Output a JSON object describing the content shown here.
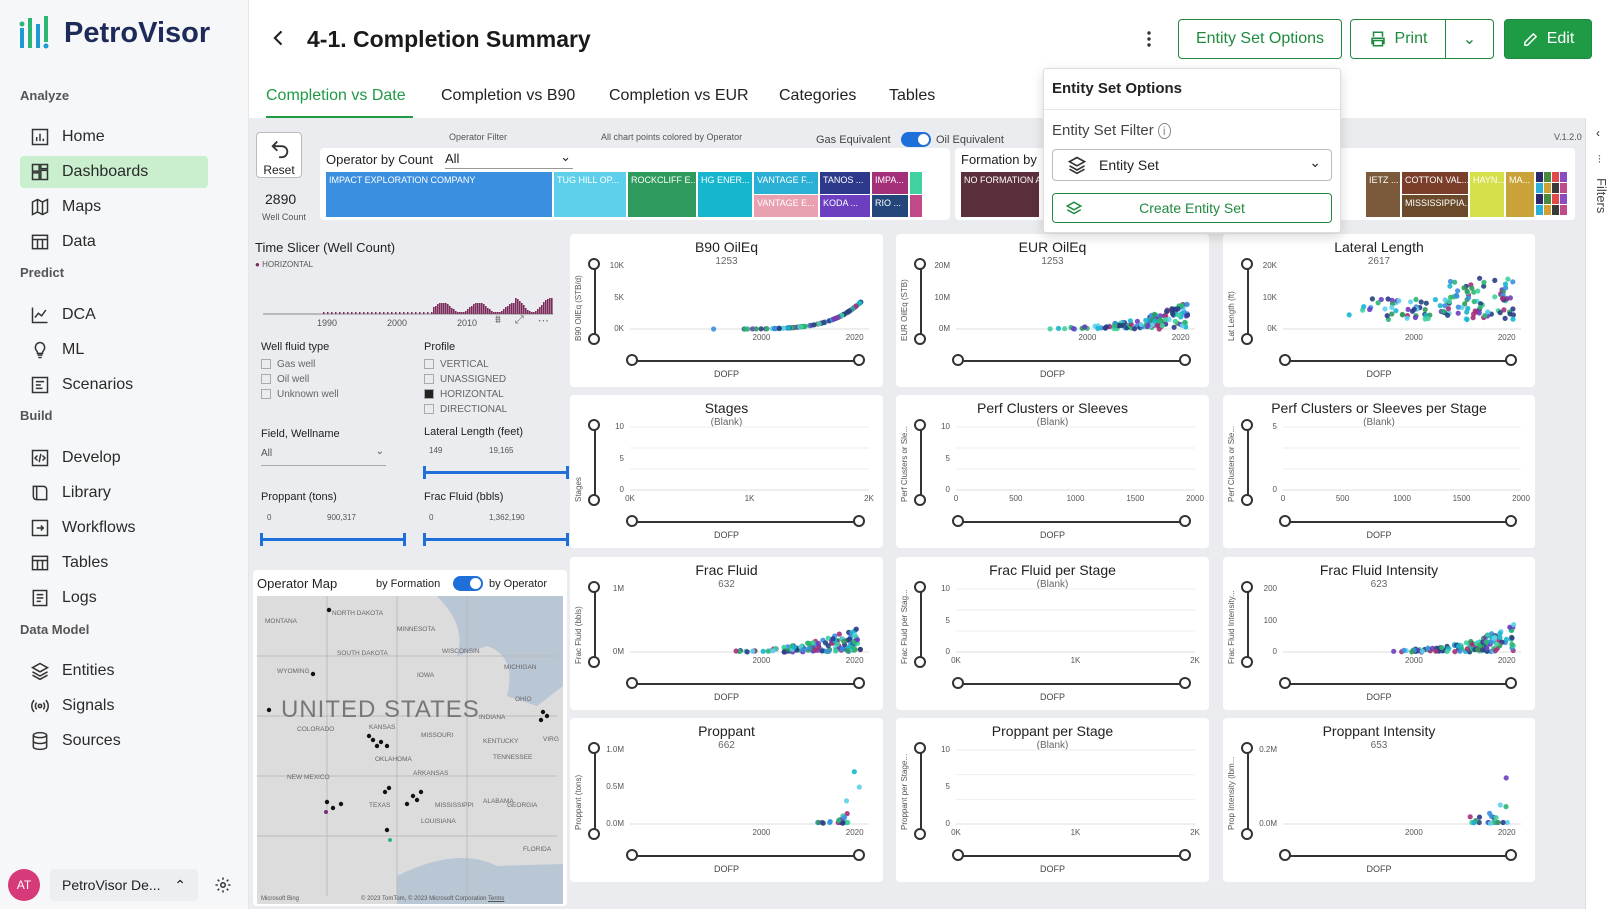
{
  "app": {
    "name": "PetroVisor"
  },
  "sidebar": {
    "sections": [
      {
        "label": "Analyze",
        "items": [
          {
            "label": "Home",
            "icon": "bar-chart-icon"
          },
          {
            "label": "Dashboards",
            "icon": "dashboard-icon",
            "active": true
          },
          {
            "label": "Maps",
            "icon": "map-icon"
          },
          {
            "label": "Data",
            "icon": "table-icon"
          }
        ]
      },
      {
        "label": "Predict",
        "items": [
          {
            "label": "DCA",
            "icon": "line-chart-icon"
          },
          {
            "label": "ML",
            "icon": "lightbulb-icon"
          },
          {
            "label": "Scenarios",
            "icon": "scenarios-icon"
          }
        ]
      },
      {
        "label": "Build",
        "items": [
          {
            "label": "Develop",
            "icon": "code-icon"
          },
          {
            "label": "Library",
            "icon": "book-icon"
          },
          {
            "label": "Workflows",
            "icon": "workflow-icon"
          },
          {
            "label": "Tables",
            "icon": "table-icon"
          },
          {
            "label": "Logs",
            "icon": "log-icon"
          }
        ]
      },
      {
        "label": "Data Model",
        "items": [
          {
            "label": "Entities",
            "icon": "layers-icon"
          },
          {
            "label": "Signals",
            "icon": "signal-icon"
          },
          {
            "label": "Sources",
            "icon": "database-icon"
          }
        ]
      }
    ],
    "user": {
      "initials": "AT",
      "workspace": "PetroVisor De..."
    }
  },
  "header": {
    "title": "4-1. Completion Summary",
    "entity_set_options": "Entity Set Options",
    "print": "Print",
    "edit": "Edit"
  },
  "tabs": [
    "Completion vs Date",
    "Completion vs B90",
    "Completion vs EUR",
    "Categories",
    "Tables"
  ],
  "entity_panel": {
    "title": "Entity Set Options",
    "filter_label": "Entity Set Filter",
    "select_value": "Entity Set",
    "create": "Create Entity Set"
  },
  "report": {
    "reset": "Reset",
    "well_count": "2890",
    "well_count_label": "Well Count",
    "operator_filter": "Operator Filter",
    "colored_note": "All chart points colored by Operator",
    "gas_equiv": "Gas Equivalent",
    "oil_equiv": "Oil Equivalent",
    "version": "V.1.2.0",
    "operator_by_count": "Operator by Count",
    "operator_all": "All",
    "formation_by": "Formation by",
    "operators": [
      {
        "label": "IMPACT EXPLORATION COMPANY",
        "color": "#3a8fe0"
      },
      {
        "label": "TUG HILL OP...",
        "color": "#5fd0ec"
      },
      {
        "label": "ROCKCLIFF E...",
        "color": "#2e9a5c"
      },
      {
        "label": "HG ENER...",
        "color": "#16b6cf"
      },
      {
        "label": "VANTAGE F...",
        "color": "#2ab0d4"
      },
      {
        "label": "VANTAGE E...",
        "color": "#e9a0b0"
      },
      {
        "label": "TANOS ...",
        "color": "#2d3a8c"
      },
      {
        "label": "KODA ...",
        "color": "#6b3fc0"
      },
      {
        "label": "IMPA...",
        "color": "#a5307a"
      },
      {
        "label": "RIO ...",
        "color": "#25467a"
      }
    ],
    "formations": [
      {
        "label": "NO FORMATION AS",
        "color": "#5c2f3c"
      },
      {
        "label": "IETZ ...",
        "color": "#7a5a3a"
      },
      {
        "label": "COTTON VAL...",
        "color": "#7a3e2a"
      },
      {
        "label": "MISSISSIPPIA...",
        "color": "#6a4a2a"
      },
      {
        "label": "HAYN...",
        "color": "#d6e04a"
      },
      {
        "label": "MA...",
        "color": "#c9a23a"
      }
    ],
    "time_slicer": "Time Slicer (Well Count)",
    "horizontal": "HORIZONTAL",
    "years": [
      "1990",
      "2000",
      "2010"
    ],
    "well_fluid": {
      "title": "Well fluid type",
      "options": [
        "Gas well",
        "Oil well",
        "Unknown well"
      ]
    },
    "profile": {
      "title": "Profile",
      "options": [
        {
          "label": "VERTICAL",
          "checked": false
        },
        {
          "label": "UNASSIGNED",
          "checked": false
        },
        {
          "label": "HORIZONTAL",
          "checked": true
        },
        {
          "label": "DIRECTIONAL",
          "checked": false
        }
      ]
    },
    "field_wellname": "Field, Wellname",
    "field_all": "All",
    "lateral_length": {
      "title": "Lateral Length (feet)",
      "min": "149",
      "max": "19,165"
    },
    "proppant": {
      "title": "Proppant (tons)",
      "min": "0",
      "max": "900,317"
    },
    "frac_fluid": {
      "title": "Frac Fluid (bbls)",
      "min": "0",
      "max": "1,362,190"
    },
    "map": {
      "title": "Operator Map",
      "by_formation": "by Formation",
      "by_operator": "by Operator",
      "country": "UNITED STATES",
      "labels": [
        "MONTANA",
        "NORTH DAKOTA",
        "MINNESOTA",
        "SOUTH DAKOTA",
        "WISCONSIN",
        "MICHIGAN",
        "WYOMING",
        "IOWA",
        "OHIO",
        "INDIANA",
        "COLORADO",
        "KANSAS",
        "MISSOURI",
        "KENTUCKY",
        "VIRG",
        "NEW MEXICO",
        "OKLAHOMA",
        "TENNESSEE",
        "ARKANSAS",
        "TEXAS",
        "MISSISSIPPI",
        "ALABAMA",
        "GEORGIA",
        "LOUISIANA",
        "FLORIDA"
      ],
      "credit": "Microsoft Bing",
      "copyright": "© 2023 TomTom, © 2023 Microsoft Corporation",
      "terms": "Terms"
    }
  },
  "charts": [
    {
      "title": "B90 OilEq",
      "sub": "1253",
      "ylabel": "B90 OilEq (STB/d)",
      "xlabel": "DOFP",
      "yticks": [
        "10K",
        "5K",
        "0K"
      ],
      "xticks": [
        "2000",
        "2020"
      ],
      "mode": "scatter"
    },
    {
      "title": "EUR OilEq",
      "sub": "1253",
      "ylabel": "EUR OilEq (STB)",
      "xlabel": "DOFP",
      "yticks": [
        "20M",
        "10M",
        "0M"
      ],
      "xticks": [
        "2000",
        "2020"
      ],
      "mode": "scatter"
    },
    {
      "title": "Lateral Length",
      "sub": "2617",
      "ylabel": "Lat Length (ft)",
      "xlabel": "DOFP",
      "yticks": [
        "20K",
        "10K",
        "0K"
      ],
      "xticks": [
        "2000",
        "2020"
      ],
      "mode": "scatter-high"
    },
    {
      "title": "Stages",
      "sub": "(Blank)",
      "ylabel": "Stages",
      "xlabel": "DOFP",
      "yticks": [
        "10",
        "5",
        "0"
      ],
      "xticks": [
        "0K",
        "1K",
        "2K"
      ],
      "mode": "blank"
    },
    {
      "title": "Perf Clusters or Sleeves",
      "sub": "(Blank)",
      "ylabel": "Perf Clusters or Sle...",
      "xlabel": "DOFP",
      "yticks": [
        "10",
        "5",
        "0"
      ],
      "xticks": [
        "0",
        "500",
        "1000",
        "1500",
        "2000"
      ],
      "mode": "blank"
    },
    {
      "title": "Perf Clusters or Sleeves per Stage",
      "sub": "(Blank)",
      "ylabel": "Perf Clusters or Sle...",
      "xlabel": "DOFP",
      "yticks": [
        "5",
        "0"
      ],
      "xticks": [
        "0",
        "500",
        "1000",
        "1500",
        "2000"
      ],
      "mode": "blank"
    },
    {
      "title": "Frac Fluid",
      "sub": "632",
      "ylabel": "Frac Fluid (bbls)",
      "xlabel": "DOFP",
      "yticks": [
        "1M",
        "0M"
      ],
      "xticks": [
        "2000",
        "2020"
      ],
      "mode": "scatter"
    },
    {
      "title": "Frac Fluid per Stage",
      "sub": "(Blank)",
      "ylabel": "Frac Fluid per Stag...",
      "xlabel": "DOFP",
      "yticks": [
        "10",
        "5",
        "0"
      ],
      "xticks": [
        "0K",
        "1K",
        "2K"
      ],
      "mode": "blank"
    },
    {
      "title": "Frac Fluid Intensity",
      "sub": "623",
      "ylabel": "Frac Fluid Intensity...",
      "xlabel": "DOFP",
      "yticks": [
        "200",
        "100",
        "0"
      ],
      "xticks": [
        "2000",
        "2020"
      ],
      "mode": "scatter"
    },
    {
      "title": "Proppant",
      "sub": "662",
      "ylabel": "Proppant (tons)",
      "xlabel": "DOFP",
      "yticks": [
        "1.0M",
        "0.5M",
        "0.0M"
      ],
      "xticks": [
        "2000",
        "2020"
      ],
      "mode": "sparse"
    },
    {
      "title": "Proppant per Stage",
      "sub": "(Blank)",
      "ylabel": "Proppant per Stage...",
      "xlabel": "DOFP",
      "yticks": [
        "10",
        "5",
        "0"
      ],
      "xticks": [
        "0K",
        "1K",
        "2K"
      ],
      "mode": "blank"
    },
    {
      "title": "Proppant Intensity",
      "sub": "653",
      "ylabel": "Prop Intensity (lbm...",
      "xlabel": "DOFP",
      "yticks": [
        "0.2M",
        "0.0M"
      ],
      "xticks": [
        "2000",
        "2020"
      ],
      "mode": "sparse"
    }
  ]
}
